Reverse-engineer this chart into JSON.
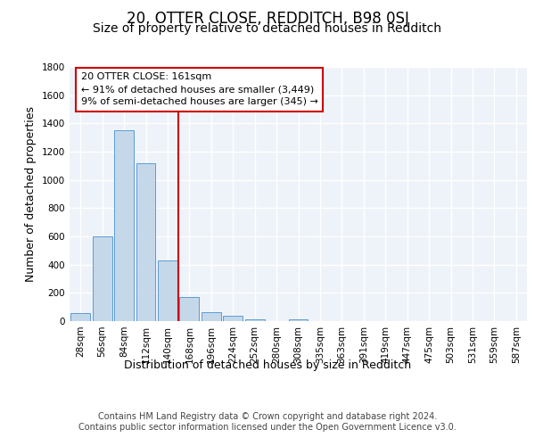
{
  "title": "20, OTTER CLOSE, REDDITCH, B98 0SJ",
  "subtitle": "Size of property relative to detached houses in Redditch",
  "xlabel": "Distribution of detached houses by size in Redditch",
  "ylabel": "Number of detached properties",
  "bin_labels": [
    "28sqm",
    "56sqm",
    "84sqm",
    "112sqm",
    "140sqm",
    "168sqm",
    "196sqm",
    "224sqm",
    "252sqm",
    "280sqm",
    "308sqm",
    "335sqm",
    "363sqm",
    "391sqm",
    "419sqm",
    "447sqm",
    "475sqm",
    "503sqm",
    "531sqm",
    "559sqm",
    "587sqm"
  ],
  "bar_values": [
    55,
    600,
    1350,
    1120,
    430,
    170,
    65,
    40,
    15,
    0,
    15,
    0,
    0,
    0,
    0,
    0,
    0,
    0,
    0,
    0,
    0
  ],
  "bar_color": "#c5d8ea",
  "bar_edge_color": "#5b9bd5",
  "background_color": "#eef3f9",
  "grid_color": "#ffffff",
  "vline_x_idx": 5,
  "vline_color": "#cc0000",
  "annotation_box_text": "20 OTTER CLOSE: 161sqm\n← 91% of detached houses are smaller (3,449)\n9% of semi-detached houses are larger (345) →",
  "annotation_box_color": "#cc0000",
  "ylim": [
    0,
    1800
  ],
  "yticks": [
    0,
    200,
    400,
    600,
    800,
    1000,
    1200,
    1400,
    1600,
    1800
  ],
  "footer_text": "Contains HM Land Registry data © Crown copyright and database right 2024.\nContains public sector information licensed under the Open Government Licence v3.0.",
  "title_fontsize": 12,
  "subtitle_fontsize": 10,
  "label_fontsize": 9,
  "tick_fontsize": 7.5,
  "footer_fontsize": 7
}
